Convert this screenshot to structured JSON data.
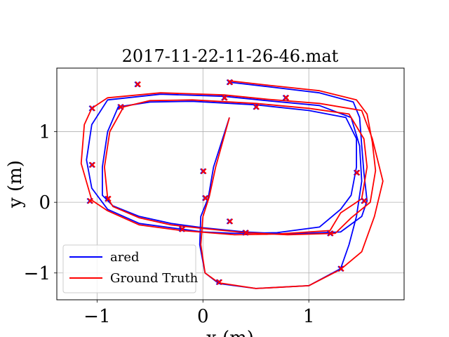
{
  "chart_data": {
    "type": "line",
    "title": "2017-11-22-11-26-46.mat",
    "xlabel": "x (m)",
    "ylabel": "y (m)",
    "xlim": [
      -1.38,
      1.9
    ],
    "ylim": [
      -1.38,
      1.9
    ],
    "xticks": [
      -1,
      0,
      1
    ],
    "yticks": [
      -1,
      0,
      1
    ],
    "xtick_labels": [
      "−1",
      "0",
      "1"
    ],
    "ytick_labels": [
      "−1",
      "0",
      "1"
    ],
    "grid": true,
    "legend_position": "lower-left",
    "series": [
      {
        "name": "ared",
        "color": "#0000ff",
        "x": [
          0.25,
          0.6,
          1.1,
          1.42,
          1.48,
          1.5,
          1.52,
          1.55,
          1.5,
          1.3,
          0.8,
          0.4,
          0.0,
          -0.3,
          -0.6,
          -0.85,
          -0.95,
          -0.95,
          -0.9,
          -0.8,
          -0.5,
          -0.1,
          0.5,
          1.0,
          1.35,
          1.45,
          1.45,
          1.4,
          1.3,
          1.1,
          0.7,
          0.3,
          0.0,
          -0.2,
          -0.6,
          -0.9,
          -1.05,
          -1.1,
          -1.05,
          -0.9,
          -0.4,
          0.2,
          0.6,
          1.1,
          1.4,
          1.48,
          1.5,
          1.45,
          1.38,
          1.3,
          1.0,
          0.5,
          0.15,
          0.02,
          -0.03,
          -0.02,
          0.05,
          0.1,
          0.25
        ],
        "y": [
          1.7,
          1.64,
          1.55,
          1.42,
          1.2,
          0.8,
          0.42,
          0.02,
          -0.2,
          -0.42,
          -0.45,
          -0.42,
          -0.36,
          -0.3,
          -0.2,
          -0.05,
          0.1,
          0.5,
          1.0,
          1.35,
          1.42,
          1.43,
          1.38,
          1.3,
          1.2,
          0.9,
          0.5,
          0.1,
          -0.1,
          -0.35,
          -0.43,
          -0.44,
          -0.42,
          -0.38,
          -0.3,
          -0.1,
          0.2,
          0.6,
          1.1,
          1.45,
          1.53,
          1.5,
          1.44,
          1.37,
          1.2,
          0.8,
          0.3,
          -0.2,
          -0.6,
          -0.94,
          -1.18,
          -1.22,
          -1.15,
          -1.0,
          -0.6,
          -0.2,
          0.06,
          0.5,
          1.2
        ]
      },
      {
        "name": "Ground Truth",
        "color": "#ff0000",
        "x": [
          0.25,
          0.6,
          1.1,
          1.45,
          1.55,
          1.6,
          1.63,
          1.58,
          1.4,
          1.25,
          0.8,
          0.4,
          0.0,
          -0.3,
          -0.6,
          -0.85,
          -0.9,
          -0.93,
          -0.88,
          -0.75,
          -0.5,
          -0.1,
          0.5,
          1.0,
          1.38,
          1.52,
          1.55,
          1.5,
          1.3,
          1.2,
          0.7,
          0.3,
          -0.2,
          -0.6,
          -0.9,
          -1.05,
          -1.15,
          -1.12,
          -1.05,
          -0.9,
          -0.4,
          0.2,
          0.6,
          1.1,
          1.5,
          1.6,
          1.7,
          1.62,
          1.5,
          1.3,
          1.0,
          0.5,
          0.15,
          0.02,
          -0.02,
          0.0,
          0.06,
          0.12,
          0.25
        ],
        "y": [
          1.72,
          1.66,
          1.58,
          1.45,
          1.25,
          0.85,
          0.45,
          0.0,
          -0.22,
          -0.44,
          -0.46,
          -0.43,
          -0.37,
          -0.32,
          -0.22,
          -0.06,
          0.06,
          0.5,
          1.0,
          1.35,
          1.44,
          1.45,
          1.4,
          1.33,
          1.25,
          0.9,
          0.5,
          0.05,
          -0.15,
          -0.4,
          -0.45,
          -0.46,
          -0.4,
          -0.32,
          -0.12,
          0.03,
          0.55,
          1.1,
          1.33,
          1.48,
          1.55,
          1.52,
          1.46,
          1.4,
          1.3,
          0.9,
          0.3,
          -0.2,
          -0.7,
          -0.95,
          -1.18,
          -1.22,
          -1.14,
          -1.0,
          -0.6,
          -0.2,
          0.08,
          0.5,
          1.2
        ]
      }
    ],
    "markers": {
      "x": [
        0.25,
        -0.62,
        -1.05,
        -0.78,
        0.5,
        0.78,
        1.45,
        1.52,
        1.3,
        1.2,
        0.4,
        0.25,
        -0.2,
        -0.9,
        -1.05,
        -1.07,
        0.0,
        0.02,
        0.15,
        0.2
      ],
      "y": [
        1.7,
        1.67,
        1.33,
        1.35,
        1.35,
        1.48,
        0.42,
        0.02,
        -0.94,
        -0.44,
        -0.43,
        -0.27,
        -0.38,
        0.05,
        0.53,
        0.02,
        0.44,
        0.06,
        -1.13,
        1.48
      ]
    }
  }
}
